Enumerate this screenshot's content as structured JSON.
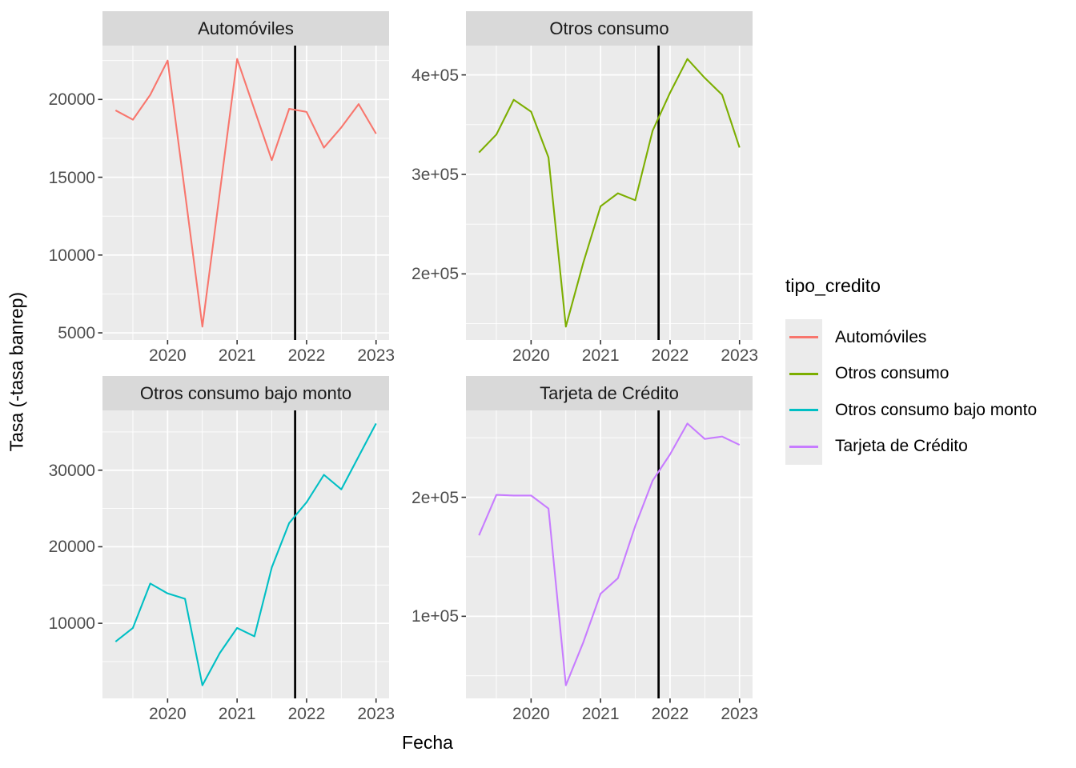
{
  "figure": {
    "kind": "faceted line chart (ggplot2 style)"
  },
  "legend": {
    "title": "tipo_credito",
    "items": [
      {
        "label": "Automóviles",
        "color": "#F8766D"
      },
      {
        "label": "Otros consumo",
        "color": "#7CAE00"
      },
      {
        "label": "Otros consumo bajo monto",
        "color": "#00BFC4"
      },
      {
        "label": "Tarjeta de Crédito",
        "color": "#C77CFF"
      }
    ]
  },
  "colors": {
    "panel_bg": "#EBEBEB",
    "strip_bg": "#D9D9D9",
    "grid": "#FFFFFF",
    "tick_text": "#4D4D4D",
    "tick_mark": "#333333",
    "vline": "#000000"
  },
  "chart_data": {
    "type": "line",
    "title": "",
    "facet_variable": "tipo_credito",
    "xlabel": "Fecha",
    "ylabel": "Tasa (-tasa banrep)",
    "legend_position": "right",
    "grid": true,
    "x_unit": "decimal year (quarterly observations)",
    "x": [
      2019.25,
      2019.5,
      2019.75,
      2020.0,
      2020.25,
      2020.5,
      2020.75,
      2021.0,
      2021.25,
      2021.5,
      2021.75,
      2022.0,
      2022.25,
      2022.5,
      2022.75,
      2023.0
    ],
    "x_ticks": {
      "values": [
        2020,
        2021,
        2022,
        2023
      ],
      "labels": [
        "2020",
        "2021",
        "2022",
        "2023"
      ]
    },
    "x_minor": [
      2019.5,
      2020.5,
      2021.5,
      2022.5
    ],
    "x_range": [
      2019.0625,
      2023.1875
    ],
    "vline_x": 2021.835,
    "facets": [
      {
        "title": "Automóviles",
        "color": "#F8766D",
        "values": [
          19300,
          18700,
          20300,
          22500,
          14000,
          5400,
          14000,
          22600,
          19350,
          16100,
          19400,
          19200,
          16900,
          18200,
          19700,
          17800
        ],
        "y_ticks": {
          "values": [
            5000,
            10000,
            15000,
            20000
          ],
          "labels": [
            "5000",
            "10000",
            "15000",
            "20000"
          ]
        }
      },
      {
        "title": "Otros consumo",
        "color": "#7CAE00",
        "values": [
          322000,
          340000,
          375000,
          363000,
          317000,
          147000,
          211000,
          268000,
          281000,
          274000,
          344000,
          382000,
          416000,
          397000,
          380000,
          327000
        ],
        "y_ticks": {
          "values": [
            200000,
            300000,
            400000
          ],
          "labels": [
            "2e+05",
            "3e+05",
            "4e+05"
          ]
        }
      },
      {
        "title": "Otros consumo bajo monto",
        "color": "#00BFC4",
        "values": [
          7600,
          9400,
          15200,
          13900,
          13200,
          1900,
          6100,
          9400,
          8300,
          17300,
          23100,
          25800,
          29400,
          27500,
          31800,
          36100
        ],
        "y_ticks": {
          "values": [
            10000,
            20000,
            30000
          ],
          "labels": [
            "10000",
            "20000",
            "30000"
          ]
        }
      },
      {
        "title": "Tarjeta de Crédito",
        "color": "#C77CFF",
        "values": [
          168000,
          202000,
          201500,
          201500,
          190500,
          42000,
          78000,
          119000,
          132000,
          176000,
          214000,
          236000,
          262000,
          249000,
          251000,
          244000
        ],
        "y_ticks": {
          "values": [
            100000,
            200000
          ],
          "labels": [
            "1e+05",
            "2e+05"
          ]
        }
      }
    ]
  }
}
